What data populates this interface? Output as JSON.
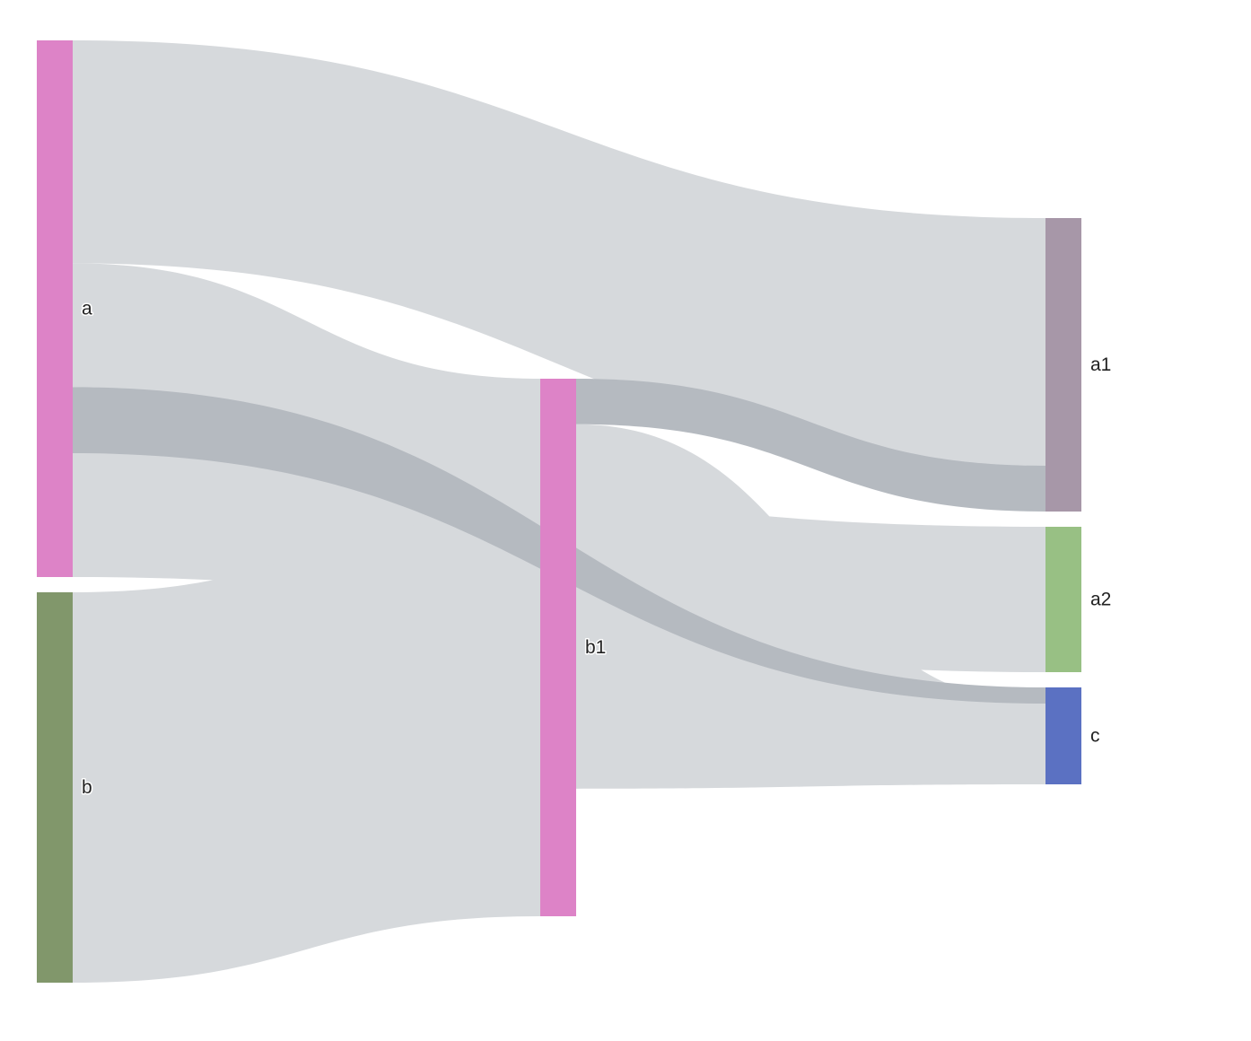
{
  "chart_data": {
    "type": "sankey",
    "nodes": [
      {
        "id": "a",
        "label": "a",
        "color": "#dd83c7"
      },
      {
        "id": "b",
        "label": "b",
        "color": "#81976b"
      },
      {
        "id": "b1",
        "label": "b1",
        "color": "#dd83c7"
      },
      {
        "id": "a1",
        "label": "a1",
        "color": "#a797a8"
      },
      {
        "id": "a2",
        "label": "a2",
        "color": "#98c084"
      },
      {
        "id": "c",
        "label": "c",
        "color": "#5b71c2"
      }
    ],
    "links": [
      {
        "source": "a",
        "target": "a1",
        "value": 27,
        "highlight": false
      },
      {
        "source": "a",
        "target": "b1",
        "value": 15,
        "highlight": false
      },
      {
        "source": "a",
        "target": "c",
        "value": 8,
        "highlight": true
      },
      {
        "source": "a",
        "target": "a2",
        "value": 15,
        "highlight": false
      },
      {
        "source": "b",
        "target": "b1",
        "value": 44,
        "highlight": false
      },
      {
        "source": "b1",
        "target": "a1",
        "value": 5,
        "highlight": true
      },
      {
        "source": "b1",
        "target": "c",
        "value": 40,
        "highlight": false
      }
    ],
    "link_color": "#d6d9dc",
    "link_highlight_color": "#b5bac0"
  }
}
